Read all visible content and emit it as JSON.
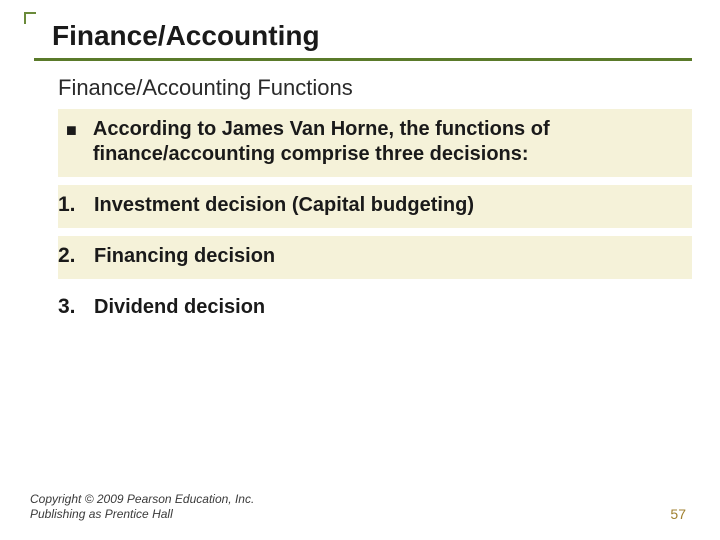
{
  "title": "Finance/Accounting",
  "subtitle": "Finance/Accounting Functions",
  "bullet": {
    "text": "According to James Van Horne, the functions of finance/accounting comprise three decisions:"
  },
  "items": [
    {
      "num": "1.",
      "text": " Investment decision (Capital budgeting)",
      "highlight": true
    },
    {
      "num": "2.",
      "text": "Financing decision",
      "highlight": true
    },
    {
      "num": "3.",
      "text": "Dividend decision",
      "highlight": false
    }
  ],
  "footer": {
    "line1": "Copyright © 2009 Pearson Education, Inc.",
    "line2": "Publishing as Prentice Hall"
  },
  "pagenum": "57",
  "colors": {
    "accent": "#5a7a2a",
    "highlight_bg": "#f5f2d9",
    "pagenum_color": "#a08030"
  }
}
